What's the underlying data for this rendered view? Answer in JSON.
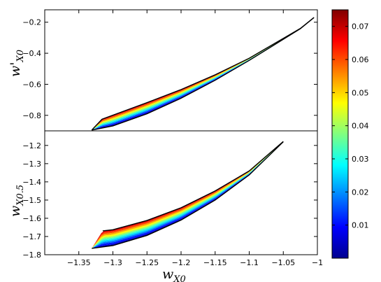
{
  "chart_data": [
    {
      "type": "area",
      "panel": "top",
      "ylabel": "w'",
      "ylabel_sub": "X0",
      "xlim": [
        -1.4,
        -1.0
      ],
      "ylim": [
        -0.9,
        -0.12
      ],
      "yticks": [
        -0.2,
        -0.4,
        -0.6,
        -0.8
      ],
      "ytick_labels": [
        "−0.2",
        "−0.4",
        "−0.6",
        "−0.8"
      ],
      "band": {
        "upper": [
          [
            -1.331,
            -0.895
          ],
          [
            -1.316,
            -0.825
          ],
          [
            -1.25,
            -0.718
          ],
          [
            -1.2,
            -0.634
          ],
          [
            -1.15,
            -0.539
          ],
          [
            -1.1,
            -0.432
          ],
          [
            -1.05,
            -0.304
          ],
          [
            -1.025,
            -0.24
          ],
          [
            -1.005,
            -0.17
          ]
        ],
        "lower": [
          [
            -1.331,
            -0.895
          ],
          [
            -1.3,
            -0.868
          ],
          [
            -1.25,
            -0.79
          ],
          [
            -1.2,
            -0.69
          ],
          [
            -1.15,
            -0.574
          ],
          [
            -1.1,
            -0.446
          ],
          [
            -1.05,
            -0.31
          ],
          [
            -1.025,
            -0.242
          ],
          [
            -1.005,
            -0.17
          ]
        ]
      }
    },
    {
      "type": "area",
      "panel": "bottom",
      "xlabel": "w",
      "xlabel_sub": "X0",
      "ylabel": "w",
      "ylabel_sub": "X0.5",
      "xlim": [
        -1.4,
        -1.0
      ],
      "ylim": [
        -1.8,
        -1.12
      ],
      "yticks": [
        -1.2,
        -1.3,
        -1.4,
        -1.5,
        -1.6,
        -1.7,
        -1.8
      ],
      "ytick_labels": [
        "−1.2",
        "−1.3",
        "−1.4",
        "−1.5",
        "−1.6",
        "−1.7",
        "−1.8"
      ],
      "xticks": [
        -1.35,
        -1.3,
        -1.25,
        -1.2,
        -1.15,
        -1.1,
        -1.05,
        -1.0
      ],
      "xtick_labels": [
        "−1.35",
        "−1.3",
        "−1.25",
        "−1.2",
        "−1.15",
        "−1.1",
        "−1.05",
        "−1"
      ],
      "band": {
        "upper": [
          [
            -1.315,
            -1.669
          ],
          [
            -1.3,
            -1.663
          ],
          [
            -1.25,
            -1.612
          ],
          [
            -1.2,
            -1.542
          ],
          [
            -1.15,
            -1.45
          ],
          [
            -1.1,
            -1.34
          ],
          [
            -1.05,
            -1.178
          ]
        ],
        "lower": [
          [
            -1.331,
            -1.765
          ],
          [
            -1.3,
            -1.75
          ],
          [
            -1.25,
            -1.694
          ],
          [
            -1.2,
            -1.61
          ],
          [
            -1.15,
            -1.5
          ],
          [
            -1.1,
            -1.362
          ],
          [
            -1.05,
            -1.18
          ]
        ],
        "left_edge": [
          [
            -1.331,
            -1.765
          ],
          [
            -1.315,
            -1.669
          ]
        ]
      }
    }
  ],
  "colorbar": {
    "range": [
      0,
      0.075
    ],
    "ticks": [
      0.01,
      0.02,
      0.03,
      0.04,
      0.05,
      0.06,
      0.07
    ],
    "tick_labels": [
      "0.01",
      "0.02",
      "0.03",
      "0.04",
      "0.05",
      "0.06",
      "0.07"
    ],
    "colormap": [
      "#00008f",
      "#0000ff",
      "#0080ff",
      "#00ffff",
      "#80ff80",
      "#ffff00",
      "#ff8000",
      "#ff0000",
      "#800000"
    ]
  }
}
